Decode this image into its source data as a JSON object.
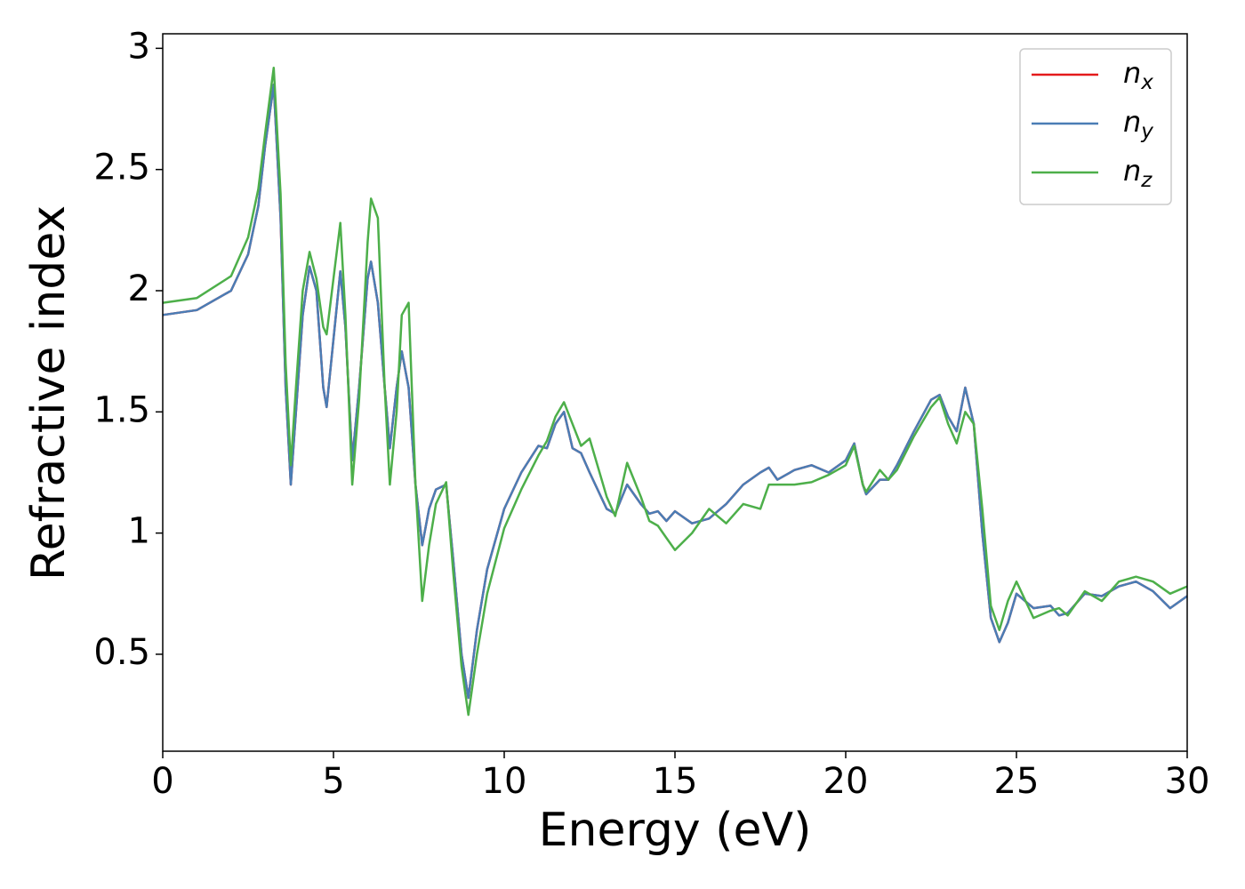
{
  "chart_data": {
    "type": "line",
    "x_label": "Energy (eV)",
    "y_label": "Refractive index",
    "x": [
      0,
      1,
      2,
      2.5,
      2.8,
      3.0,
      3.25,
      3.45,
      3.6,
      3.75,
      3.9,
      4.1,
      4.3,
      4.5,
      4.7,
      4.8,
      5.0,
      5.2,
      5.35,
      5.55,
      5.75,
      6.0,
      6.1,
      6.3,
      6.5,
      6.65,
      6.85,
      7.0,
      7.2,
      7.4,
      7.6,
      7.8,
      8.0,
      8.3,
      8.5,
      8.75,
      8.95,
      9.2,
      9.5,
      10,
      10.5,
      11,
      11.25,
      11.5,
      11.75,
      12.0,
      12.25,
      12.5,
      13,
      13.25,
      13.6,
      14,
      14.25,
      14.5,
      14.75,
      15,
      15.5,
      16,
      16.5,
      17,
      17.5,
      17.75,
      18,
      18.5,
      19,
      19.5,
      20,
      20.25,
      20.5,
      20.6,
      21,
      21.25,
      21.5,
      22,
      22.5,
      22.75,
      23.0,
      23.25,
      23.5,
      23.75,
      24,
      24.25,
      24.5,
      24.75,
      25,
      25.5,
      26,
      26.25,
      26.5,
      27,
      27.5,
      28,
      28.5,
      29,
      29.5,
      30
    ],
    "series": [
      {
        "name": "n_x",
        "color": "#e41a1c",
        "values": [
          1.9,
          1.92,
          2.0,
          2.15,
          2.35,
          2.6,
          2.85,
          2.3,
          1.6,
          1.2,
          1.5,
          1.9,
          2.1,
          2.0,
          1.6,
          1.52,
          1.8,
          2.08,
          1.85,
          1.3,
          1.6,
          2.05,
          2.12,
          1.95,
          1.6,
          1.35,
          1.6,
          1.75,
          1.6,
          1.2,
          0.95,
          1.1,
          1.18,
          1.2,
          0.9,
          0.5,
          0.32,
          0.6,
          0.85,
          1.1,
          1.25,
          1.36,
          1.35,
          1.45,
          1.5,
          1.35,
          1.33,
          1.25,
          1.1,
          1.08,
          1.2,
          1.12,
          1.08,
          1.09,
          1.05,
          1.09,
          1.04,
          1.06,
          1.12,
          1.2,
          1.25,
          1.27,
          1.22,
          1.26,
          1.28,
          1.25,
          1.3,
          1.37,
          1.2,
          1.16,
          1.22,
          1.22,
          1.28,
          1.42,
          1.55,
          1.57,
          1.48,
          1.42,
          1.6,
          1.45,
          1.0,
          0.65,
          0.55,
          0.63,
          0.75,
          0.69,
          0.7,
          0.66,
          0.67,
          0.75,
          0.74,
          0.78,
          0.8,
          0.76,
          0.69,
          0.74
        ]
      },
      {
        "name": "n_y",
        "color": "#4a7db5",
        "values": [
          1.9,
          1.92,
          2.0,
          2.15,
          2.35,
          2.6,
          2.85,
          2.3,
          1.6,
          1.2,
          1.5,
          1.9,
          2.1,
          2.0,
          1.6,
          1.52,
          1.8,
          2.08,
          1.85,
          1.3,
          1.6,
          2.05,
          2.12,
          1.95,
          1.6,
          1.35,
          1.6,
          1.75,
          1.6,
          1.2,
          0.95,
          1.1,
          1.18,
          1.2,
          0.9,
          0.5,
          0.32,
          0.6,
          0.85,
          1.1,
          1.25,
          1.36,
          1.35,
          1.45,
          1.5,
          1.35,
          1.33,
          1.25,
          1.1,
          1.08,
          1.2,
          1.12,
          1.08,
          1.09,
          1.05,
          1.09,
          1.04,
          1.06,
          1.12,
          1.2,
          1.25,
          1.27,
          1.22,
          1.26,
          1.28,
          1.25,
          1.3,
          1.37,
          1.2,
          1.16,
          1.22,
          1.22,
          1.28,
          1.42,
          1.55,
          1.57,
          1.48,
          1.42,
          1.6,
          1.45,
          1.0,
          0.65,
          0.55,
          0.63,
          0.75,
          0.69,
          0.7,
          0.66,
          0.67,
          0.75,
          0.74,
          0.78,
          0.8,
          0.76,
          0.69,
          0.74
        ]
      },
      {
        "name": "n_z",
        "color": "#4daf4a",
        "values": [
          1.95,
          1.97,
          2.06,
          2.22,
          2.42,
          2.65,
          2.92,
          2.4,
          1.7,
          1.28,
          1.6,
          2.0,
          2.16,
          2.05,
          1.85,
          1.82,
          2.05,
          2.28,
          1.9,
          1.2,
          1.55,
          2.2,
          2.38,
          2.3,
          1.6,
          1.2,
          1.5,
          1.9,
          1.95,
          1.2,
          0.72,
          0.95,
          1.12,
          1.21,
          0.85,
          0.45,
          0.25,
          0.5,
          0.75,
          1.02,
          1.18,
          1.32,
          1.38,
          1.48,
          1.54,
          1.45,
          1.36,
          1.39,
          1.15,
          1.07,
          1.29,
          1.15,
          1.05,
          1.03,
          0.98,
          0.93,
          1.0,
          1.1,
          1.04,
          1.12,
          1.1,
          1.2,
          1.2,
          1.2,
          1.21,
          1.24,
          1.28,
          1.36,
          1.2,
          1.17,
          1.26,
          1.22,
          1.26,
          1.4,
          1.52,
          1.56,
          1.45,
          1.37,
          1.5,
          1.45,
          1.1,
          0.7,
          0.6,
          0.72,
          0.8,
          0.65,
          0.68,
          0.69,
          0.66,
          0.76,
          0.72,
          0.8,
          0.82,
          0.8,
          0.75,
          0.78
        ]
      }
    ],
    "xlim": [
      0,
      30
    ],
    "ylim": [
      0.1,
      3.06
    ],
    "xticks": [
      0,
      5,
      10,
      15,
      20,
      25,
      30
    ],
    "yticks": [
      0.5,
      1.0,
      1.5,
      2.0,
      2.5,
      3.0
    ],
    "legend": "upper right"
  }
}
